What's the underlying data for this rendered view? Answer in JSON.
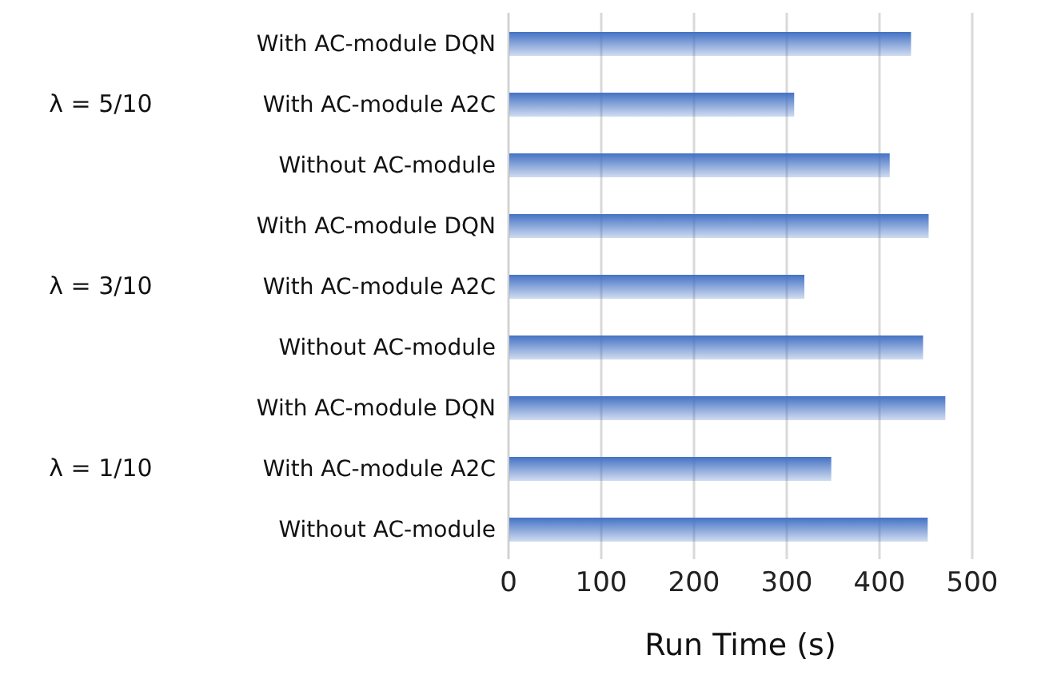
{
  "chart_data": {
    "type": "bar",
    "orientation": "horizontal",
    "xlabel": "Run Time (s)",
    "categories": [
      "With AC-module DQN",
      "With AC-module A2C",
      "Without AC-module",
      "With AC-module DQN",
      "With AC-module A2C",
      "Without AC-module",
      "With AC-module DQN",
      "With AC-module A2C",
      "Without AC-module"
    ],
    "values": [
      434,
      308,
      411,
      453,
      319,
      447,
      471,
      348,
      452
    ],
    "color": "#4472c4",
    "annotations": [
      "λ = 5/10",
      "λ = 3/10",
      "λ = 1/10"
    ],
    "xlim": [
      0,
      500
    ],
    "xticks": [
      0,
      100,
      200,
      300,
      400,
      500
    ],
    "grid": "x",
    "legend": false
  }
}
